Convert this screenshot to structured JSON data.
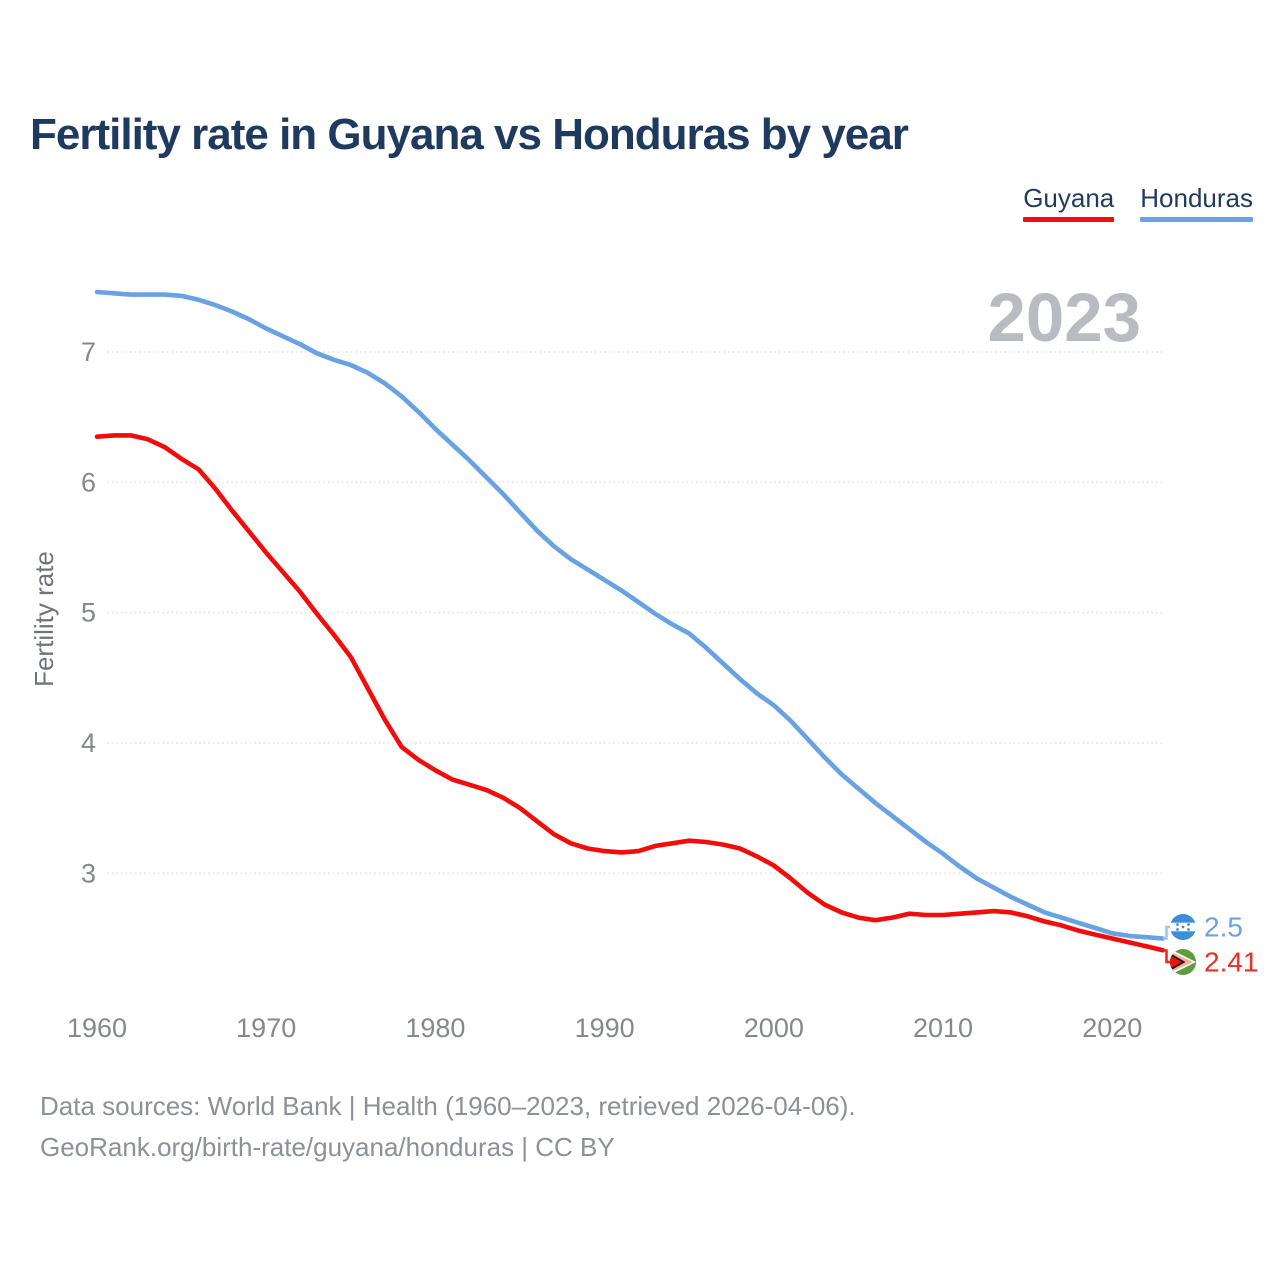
{
  "title": "Fertility rate in Guyana vs Honduras by year",
  "watermark_year": "2023",
  "legend": [
    {
      "label": "Guyana",
      "color": "#f20d0d"
    },
    {
      "label": "Honduras",
      "color": "#6aa3e3"
    }
  ],
  "y_axis": {
    "label": "Fertility rate",
    "ticks": [
      7,
      6,
      5,
      4,
      3
    ]
  },
  "x_axis": {
    "ticks": [
      1960,
      1970,
      1980,
      1990,
      2000,
      2010,
      2020
    ]
  },
  "end_labels": {
    "honduras": "2.5",
    "guyana": "2.41"
  },
  "flags": {
    "honduras": "honduras-flag",
    "guyana": "guyana-flag"
  },
  "footer": {
    "line1": "Data sources: World Bank | Health (1960–2023, retrieved 2026-04-06).",
    "line2": "GeoRank.org/birth-rate/guyana/honduras | CC BY"
  },
  "colors": {
    "title": "#1e3a5f",
    "guyana_line": "#f20d0d",
    "honduras_line": "#69a2e2",
    "axis_text": "#85898d",
    "gridline": "#ebebeb",
    "watermark": "#b8bcc0",
    "footer_text": "#8b9196"
  },
  "chart_data": {
    "type": "line",
    "title": "Fertility rate in Guyana vs Honduras by year",
    "xlabel": "",
    "ylabel": "Fertility rate",
    "xlim": [
      1960,
      2023
    ],
    "ylim": [
      2.3,
      7.6
    ],
    "y_ticks": [
      3,
      4,
      5,
      6,
      7
    ],
    "x_ticks": [
      1960,
      1970,
      1980,
      1990,
      2000,
      2010,
      2020
    ],
    "grid": "horizontal",
    "legend_position": "top-right",
    "x": [
      1960,
      1961,
      1962,
      1963,
      1964,
      1965,
      1966,
      1967,
      1968,
      1969,
      1970,
      1971,
      1972,
      1973,
      1974,
      1975,
      1976,
      1977,
      1978,
      1979,
      1980,
      1981,
      1982,
      1983,
      1984,
      1985,
      1986,
      1987,
      1988,
      1989,
      1990,
      1991,
      1992,
      1993,
      1994,
      1995,
      1996,
      1997,
      1998,
      1999,
      2000,
      2001,
      2002,
      2003,
      2004,
      2005,
      2006,
      2007,
      2008,
      2009,
      2010,
      2011,
      2012,
      2013,
      2014,
      2015,
      2016,
      2017,
      2018,
      2019,
      2020,
      2021,
      2022,
      2023
    ],
    "series": [
      {
        "name": "Guyana",
        "color": "#f20d0d",
        "final_value": 2.41,
        "values": [
          6.35,
          6.36,
          6.36,
          6.33,
          6.27,
          6.18,
          6.1,
          5.95,
          5.78,
          5.62,
          5.46,
          5.31,
          5.16,
          4.99,
          4.83,
          4.66,
          4.42,
          4.18,
          3.97,
          3.87,
          3.79,
          3.72,
          3.68,
          3.64,
          3.58,
          3.5,
          3.4,
          3.3,
          3.23,
          3.19,
          3.17,
          3.16,
          3.17,
          3.21,
          3.23,
          3.25,
          3.24,
          3.22,
          3.19,
          3.13,
          3.06,
          2.96,
          2.85,
          2.76,
          2.7,
          2.66,
          2.64,
          2.66,
          2.69,
          2.68,
          2.68,
          2.69,
          2.7,
          2.71,
          2.7,
          2.67,
          2.63,
          2.6,
          2.56,
          2.53,
          2.5,
          2.47,
          2.44,
          2.41
        ]
      },
      {
        "name": "Honduras",
        "color": "#69a2e2",
        "final_value": 2.5,
        "values": [
          7.46,
          7.45,
          7.44,
          7.44,
          7.44,
          7.43,
          7.4,
          7.36,
          7.31,
          7.25,
          7.18,
          7.12,
          7.06,
          6.99,
          6.94,
          6.9,
          6.84,
          6.76,
          6.66,
          6.54,
          6.41,
          6.29,
          6.17,
          6.04,
          5.91,
          5.77,
          5.63,
          5.51,
          5.41,
          5.33,
          5.25,
          5.17,
          5.08,
          4.99,
          4.91,
          4.84,
          4.73,
          4.61,
          4.49,
          4.38,
          4.29,
          4.17,
          4.03,
          3.89,
          3.76,
          3.65,
          3.54,
          3.44,
          3.34,
          3.24,
          3.15,
          3.05,
          2.96,
          2.89,
          2.82,
          2.76,
          2.7,
          2.66,
          2.62,
          2.58,
          2.54,
          2.52,
          2.51,
          2.5
        ]
      }
    ]
  }
}
